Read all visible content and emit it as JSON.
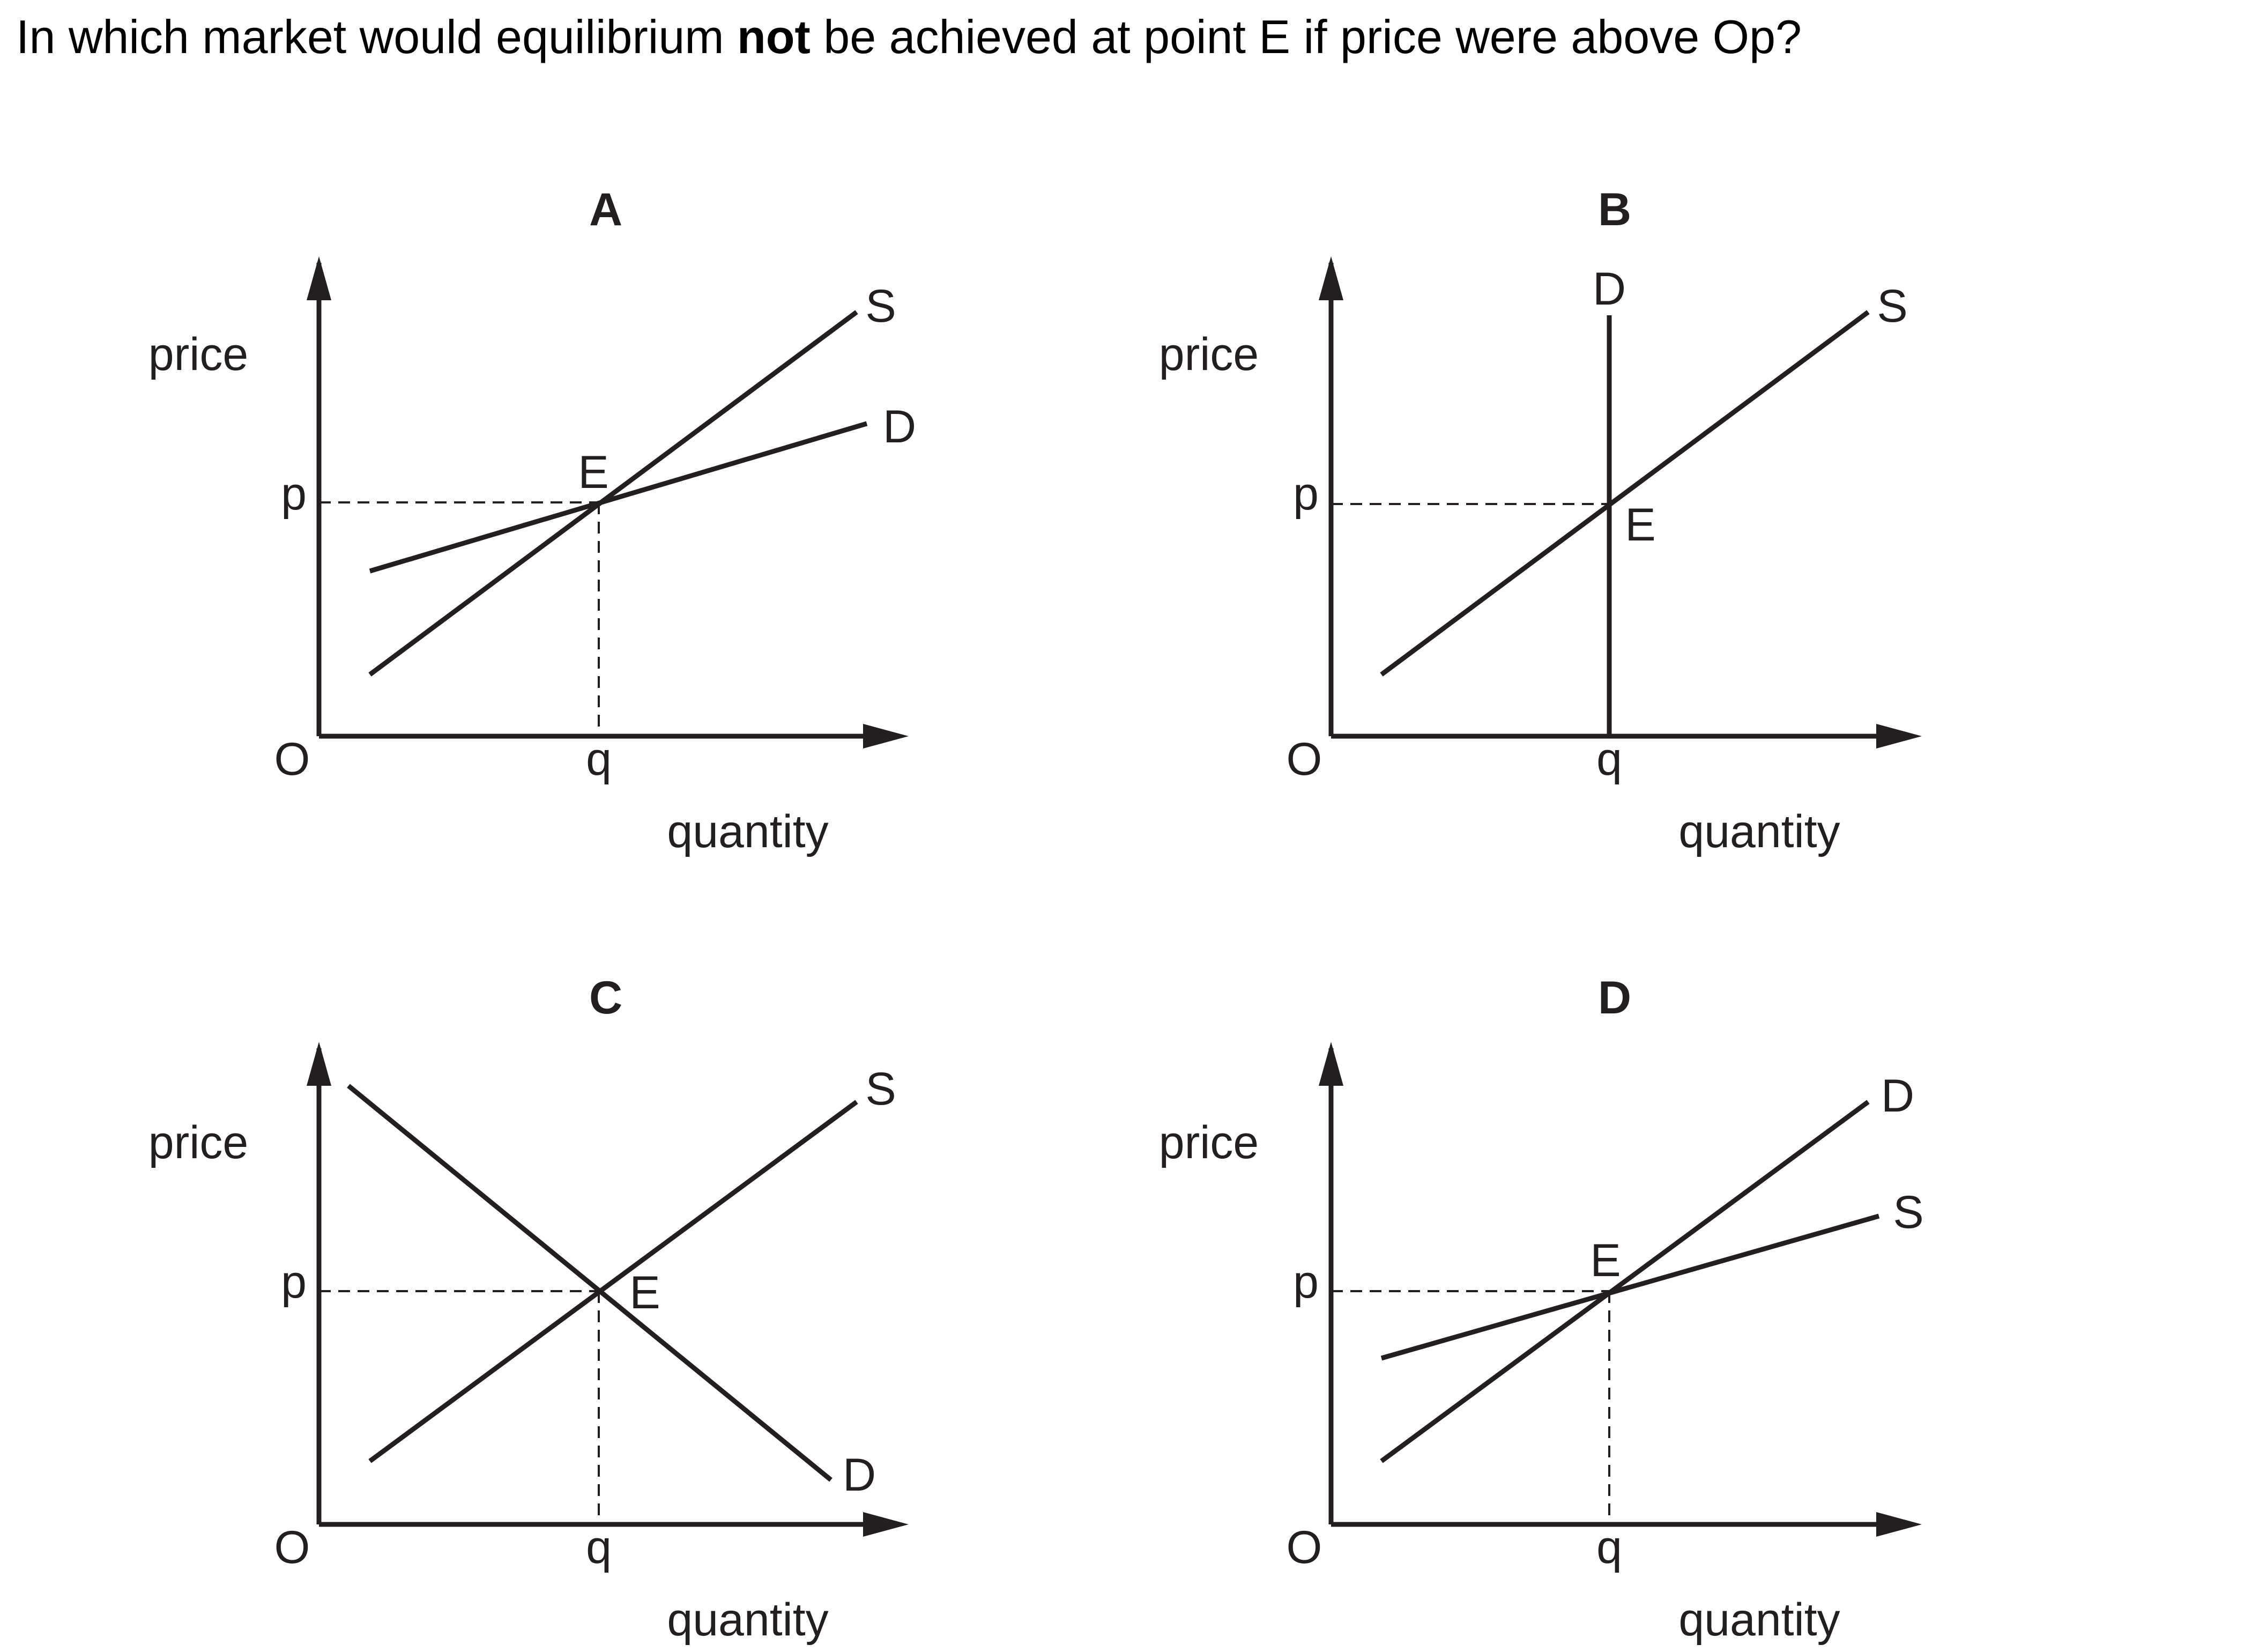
{
  "question": {
    "before": "In which market would equilibrium ",
    "emphasis": "not",
    "after": " be achieved at point E if price were above Op?"
  },
  "axis_labels": {
    "y": "price",
    "x": "quantity",
    "origin": "O",
    "p": "p",
    "q": "q"
  },
  "equilibrium_label": "E",
  "colors": {
    "ink": "#231f20"
  },
  "panels": [
    {
      "id": "A",
      "label": "A",
      "curves": [
        {
          "name": "S",
          "label": "S",
          "slope": "positive, steep"
        },
        {
          "name": "D",
          "label": "D",
          "slope": "positive, flatter than S"
        }
      ]
    },
    {
      "id": "B",
      "label": "B",
      "curves": [
        {
          "name": "D",
          "label": "D",
          "slope": "vertical"
        },
        {
          "name": "S",
          "label": "S",
          "slope": "positive"
        }
      ]
    },
    {
      "id": "C",
      "label": "C",
      "curves": [
        {
          "name": "S",
          "label": "S",
          "slope": "positive"
        },
        {
          "name": "D",
          "label": "D",
          "slope": "negative"
        }
      ]
    },
    {
      "id": "D",
      "label": "D",
      "curves": [
        {
          "name": "D",
          "label": "D",
          "slope": "positive, steep"
        },
        {
          "name": "S",
          "label": "S",
          "slope": "positive, flatter than D"
        }
      ]
    }
  ]
}
